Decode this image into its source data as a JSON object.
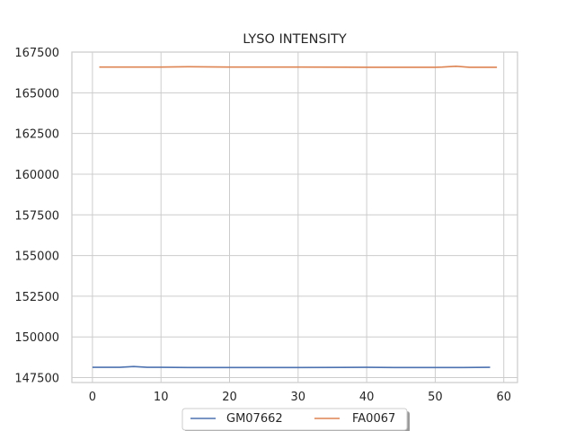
{
  "chart_data": {
    "type": "line",
    "title": "LYSO INTENSITY",
    "xlabel": "",
    "ylabel": "",
    "xlim": [
      -3,
      62
    ],
    "ylim": [
      147200,
      167500
    ],
    "xticks": [
      0,
      10,
      20,
      30,
      40,
      50,
      60
    ],
    "yticks": [
      147500,
      150000,
      152500,
      155000,
      157500,
      160000,
      162500,
      165000,
      167500
    ],
    "grid": true,
    "legend_position": "bottom-center",
    "series": [
      {
        "name": "GM07662",
        "color": "#4c72b0",
        "x": [
          0,
          2,
          4,
          6,
          8,
          10,
          14,
          20,
          30,
          40,
          44,
          50,
          54,
          58
        ],
        "y": [
          148130,
          148130,
          148130,
          148180,
          148130,
          148130,
          148120,
          148120,
          148120,
          148130,
          148120,
          148120,
          148120,
          148130
        ]
      },
      {
        "name": "FA0067",
        "color": "#dd8452",
        "x": [
          1,
          5,
          10,
          14,
          20,
          30,
          40,
          50,
          51,
          53,
          55,
          57,
          59
        ],
        "y": [
          166580,
          166580,
          166580,
          166600,
          166580,
          166580,
          166570,
          166570,
          166580,
          166630,
          166570,
          166570,
          166570
        ]
      }
    ]
  }
}
